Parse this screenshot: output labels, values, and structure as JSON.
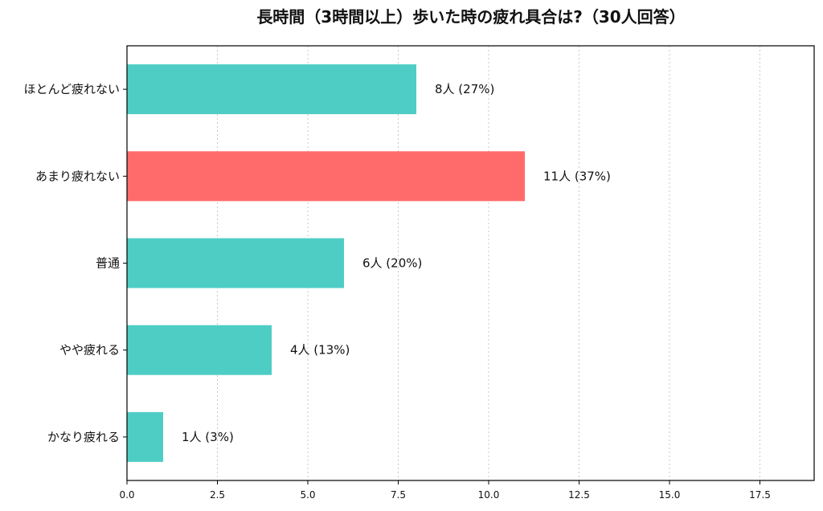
{
  "chart_data": {
    "type": "bar",
    "orientation": "horizontal",
    "title": "長時間（3時間以上）歩いた時の疲れ具合は?（30人回答）",
    "xlabel": "",
    "ylabel": "",
    "xlim": [
      0,
      19
    ],
    "xticks": [
      0.0,
      2.5,
      5.0,
      7.5,
      10.0,
      12.5,
      15.0,
      17.5
    ],
    "xtick_labels": [
      "0.0",
      "2.5",
      "5.0",
      "7.5",
      "10.0",
      "12.5",
      "15.0",
      "17.5"
    ],
    "grid": "vertical-dotted",
    "categories": [
      "ほとんど疲れない",
      "あまり疲れない",
      "普通",
      "やや疲れる",
      "かなり疲れる"
    ],
    "values": [
      8,
      11,
      6,
      4,
      1
    ],
    "data_labels": [
      "8人 (27%)",
      "11人 (37%)",
      "6人 (20%)",
      "4人 (13%)",
      "1人 (3%)"
    ],
    "colors": [
      "#4ECDC4",
      "#FF6B6B",
      "#4ECDC4",
      "#4ECDC4",
      "#4ECDC4"
    ]
  }
}
